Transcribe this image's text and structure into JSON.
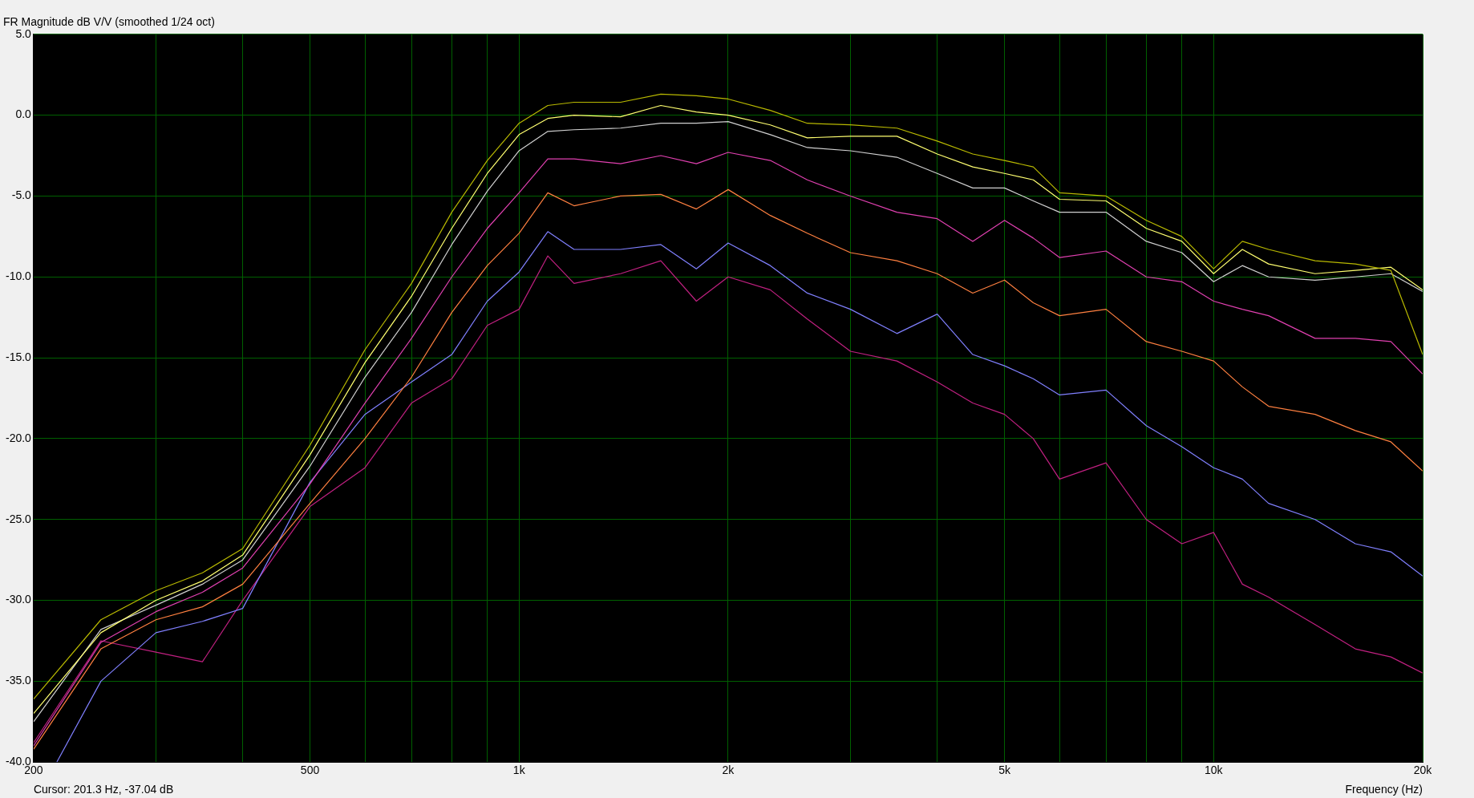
{
  "chart_data": {
    "type": "line",
    "title": "FR Magnitude dB V/V (smoothed 1/24 oct)",
    "xlabel": "Frequency (Hz)",
    "annotations": [
      "Cursor: 201.3 Hz, -37.04 dB"
    ],
    "log": "x",
    "grid": true,
    "legend": false,
    "x": [
      200,
      250,
      300,
      350,
      400,
      500,
      600,
      700,
      800,
      900,
      1000,
      1100,
      1200,
      1400,
      1600,
      1800,
      2000,
      2300,
      2600,
      3000,
      3500,
      4000,
      4500,
      5000,
      5500,
      6000,
      7000,
      8000,
      9000,
      10000,
      11000,
      12000,
      14000,
      16000,
      18000,
      20000
    ],
    "xlim": [
      200,
      20000
    ],
    "xticks": [
      {
        "value": 200,
        "label": "200"
      },
      {
        "value": 300,
        "label": null
      },
      {
        "value": 400,
        "label": null
      },
      {
        "value": 500,
        "label": "500"
      },
      {
        "value": 600,
        "label": null
      },
      {
        "value": 700,
        "label": null
      },
      {
        "value": 800,
        "label": null
      },
      {
        "value": 900,
        "label": null
      },
      {
        "value": 1000,
        "label": "1k"
      },
      {
        "value": 2000,
        "label": "2k"
      },
      {
        "value": 3000,
        "label": null
      },
      {
        "value": 4000,
        "label": null
      },
      {
        "value": 5000,
        "label": "5k"
      },
      {
        "value": 6000,
        "label": null
      },
      {
        "value": 7000,
        "label": null
      },
      {
        "value": 8000,
        "label": null
      },
      {
        "value": 9000,
        "label": null
      },
      {
        "value": 10000,
        "label": "10k"
      },
      {
        "value": 20000,
        "label": "20k"
      }
    ],
    "ylim": [
      -40,
      5
    ],
    "yticks": [
      {
        "value": 5,
        "label": "5.0"
      },
      {
        "value": 0,
        "label": "0.0"
      },
      {
        "value": -5,
        "label": "-5.0"
      },
      {
        "value": -10,
        "label": "-10.0"
      },
      {
        "value": -15,
        "label": "-15.0"
      },
      {
        "value": -20,
        "label": "-20.0"
      },
      {
        "value": -25,
        "label": "-25.0"
      },
      {
        "value": -30,
        "label": "-30.0"
      },
      {
        "value": -35,
        "label": "-35.0"
      },
      {
        "value": -40,
        "label": "-40.0"
      }
    ],
    "series": [
      {
        "color": "#b8b800",
        "values": [
          -36.1,
          -31.2,
          -29.4,
          -28.3,
          -26.8,
          -20.4,
          -14.5,
          -10.4,
          -6.0,
          -2.8,
          -0.5,
          0.6,
          0.8,
          0.8,
          1.3,
          1.2,
          1.0,
          0.3,
          -0.5,
          -0.6,
          -0.8,
          -1.6,
          -2.4,
          -2.8,
          -3.2,
          -4.8,
          -5.0,
          -6.5,
          -7.5,
          -9.5,
          -7.8,
          -8.3,
          -9.0,
          -9.2,
          -9.6,
          -14.8
        ]
      },
      {
        "color": "#ffff70",
        "values": [
          -37.0,
          -32.0,
          -30.0,
          -28.8,
          -27.2,
          -21.0,
          -15.3,
          -11.2,
          -7.0,
          -3.6,
          -1.2,
          -0.2,
          0.0,
          -0.1,
          0.6,
          0.2,
          0.0,
          -0.6,
          -1.4,
          -1.3,
          -1.3,
          -2.4,
          -3.2,
          -3.6,
          -4.0,
          -5.2,
          -5.3,
          -7.0,
          -7.8,
          -9.8,
          -8.3,
          -9.2,
          -9.8,
          -9.6,
          -9.4,
          -10.8
        ]
      },
      {
        "color": "#d0d0d0",
        "values": [
          -37.5,
          -31.8,
          -30.3,
          -29.0,
          -27.5,
          -21.7,
          -16.2,
          -12.2,
          -8.0,
          -4.7,
          -2.2,
          -1.0,
          -0.9,
          -0.8,
          -0.5,
          -0.5,
          -0.4,
          -1.2,
          -2.0,
          -2.2,
          -2.6,
          -3.6,
          -4.5,
          -4.5,
          -5.3,
          -6.0,
          -6.0,
          -7.8,
          -8.5,
          -10.3,
          -9.3,
          -10.0,
          -10.2,
          -10.0,
          -9.8,
          -10.9
        ]
      },
      {
        "color": "#e040b0",
        "values": [
          -39.0,
          -32.6,
          -30.7,
          -29.5,
          -28.0,
          -22.8,
          -17.8,
          -13.8,
          -10.0,
          -7.0,
          -4.8,
          -2.7,
          -2.7,
          -3.0,
          -2.5,
          -3.0,
          -2.3,
          -2.8,
          -4.0,
          -5.0,
          -6.0,
          -6.4,
          -7.8,
          -6.5,
          -7.6,
          -8.8,
          -8.4,
          -10.0,
          -10.3,
          -11.5,
          -12.0,
          -12.4,
          -13.8,
          -13.8,
          -14.0,
          -16.0
        ]
      },
      {
        "color": "#ff8040",
        "values": [
          -39.2,
          -33.0,
          -31.2,
          -30.4,
          -29.0,
          -24.0,
          -20.0,
          -16.2,
          -12.2,
          -9.3,
          -7.3,
          -4.8,
          -5.6,
          -5.0,
          -4.9,
          -5.8,
          -4.6,
          -6.2,
          -7.3,
          -8.5,
          -9.0,
          -9.8,
          -11.0,
          -10.2,
          -11.6,
          -12.4,
          -12.0,
          -14.0,
          -14.6,
          -15.2,
          -16.8,
          -18.0,
          -18.5,
          -19.5,
          -20.2,
          -22.0
        ]
      },
      {
        "color": "#8080ff",
        "x": [
          216,
          250,
          300,
          350,
          400,
          500,
          600,
          700,
          800,
          900,
          1000,
          1100,
          1200,
          1400,
          1600,
          1800,
          2000,
          2300,
          2600,
          3000,
          3500,
          4000,
          4500,
          5000,
          5500,
          6000,
          7000,
          8000,
          9000,
          10000,
          11000,
          12000,
          14000,
          16000,
          18000,
          20000
        ],
        "values": [
          -40.0,
          -35.0,
          -32.0,
          -31.3,
          -30.5,
          -22.7,
          -18.5,
          -16.5,
          -14.8,
          -11.5,
          -9.7,
          -7.2,
          -8.3,
          -8.3,
          -8.0,
          -9.5,
          -7.9,
          -9.3,
          -11.0,
          -12.0,
          -13.5,
          -12.3,
          -14.8,
          -15.5,
          -16.3,
          -17.3,
          -17.0,
          -19.2,
          -20.5,
          -21.8,
          -22.5,
          -24.0,
          -25.0,
          -26.5,
          -27.0,
          -28.5
        ]
      },
      {
        "color": "#c02080",
        "values": [
          -38.8,
          -32.5,
          -33.2,
          -33.8,
          -30.0,
          -24.2,
          -21.8,
          -17.8,
          -16.3,
          -13.0,
          -12.0,
          -8.7,
          -10.4,
          -9.8,
          -9.0,
          -11.5,
          -10.0,
          -10.8,
          -12.6,
          -14.6,
          -15.2,
          -16.5,
          -17.8,
          -18.5,
          -20.0,
          -22.5,
          -21.5,
          -25.0,
          -26.5,
          -25.8,
          -29.0,
          -29.8,
          -31.5,
          -33.0,
          -33.5,
          -34.5
        ]
      }
    ]
  }
}
